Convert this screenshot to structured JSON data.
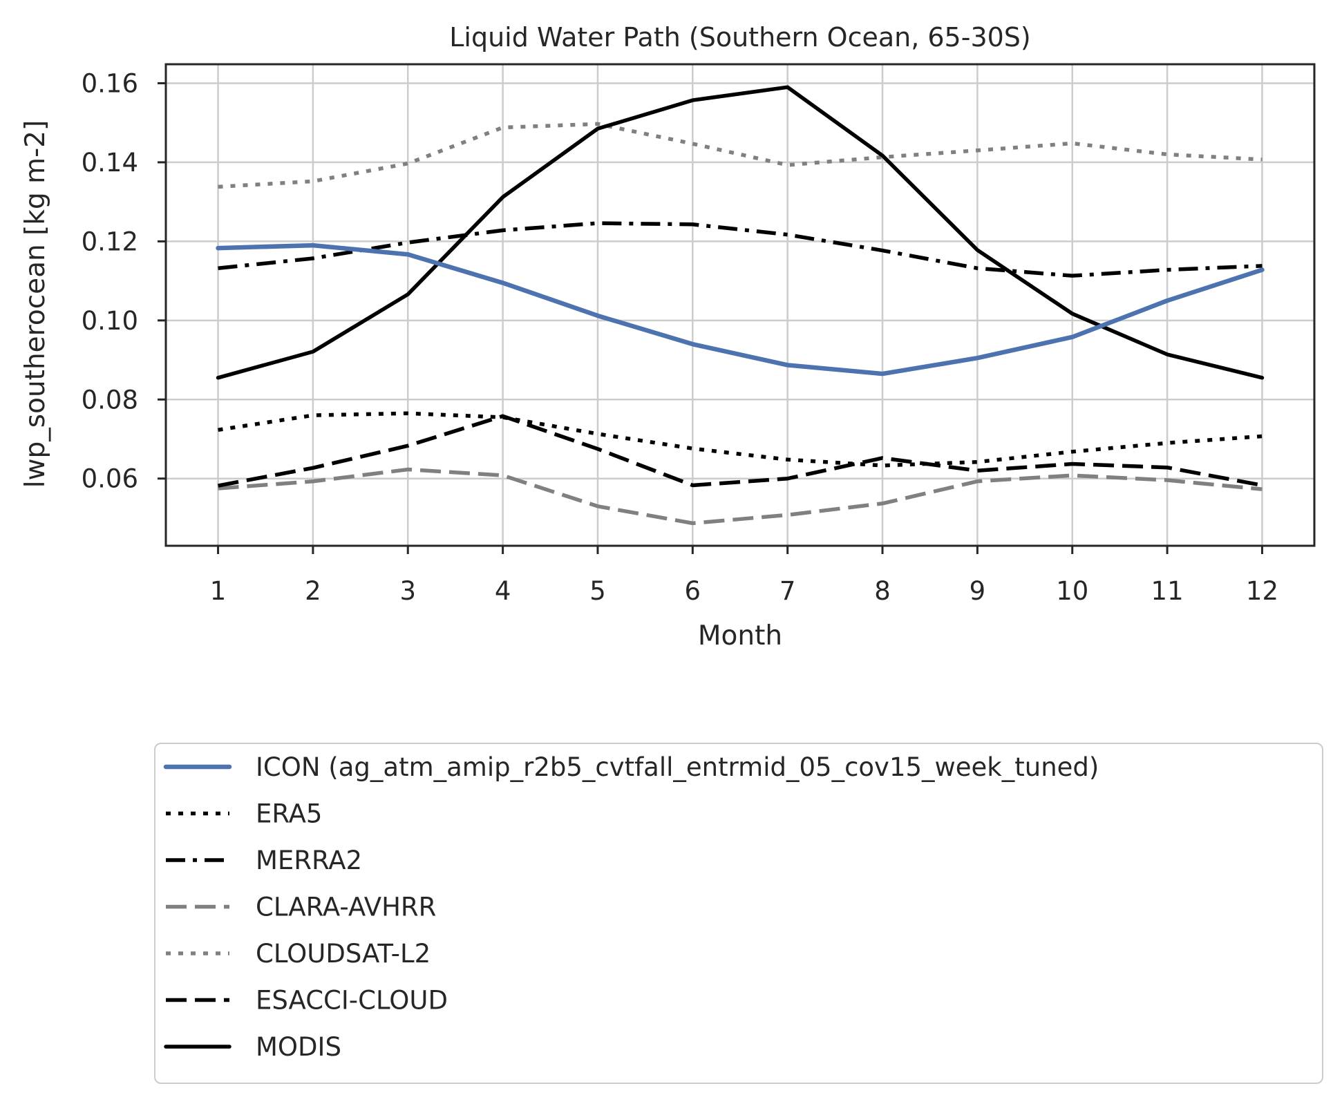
{
  "chart_data": {
    "type": "line",
    "title": "Liquid Water Path (Southern Ocean, 65-30S)",
    "xlabel": "Month",
    "ylabel": "lwp_southerocean [kg m-2]",
    "x": [
      1,
      2,
      3,
      4,
      5,
      6,
      7,
      8,
      9,
      10,
      11,
      12
    ],
    "x_tick_labels": [
      "1",
      "2",
      "3",
      "4",
      "5",
      "6",
      "7",
      "8",
      "9",
      "10",
      "11",
      "12"
    ],
    "xlim": [
      0.45,
      12.55
    ],
    "ylim": [
      0.043,
      0.1648
    ],
    "y_ticks": [
      0.06,
      0.08,
      0.1,
      0.12,
      0.14,
      0.16
    ],
    "y_tick_labels": [
      "0.06",
      "0.08",
      "0.10",
      "0.12",
      "0.14",
      "0.16"
    ],
    "grid": true,
    "legend_position": "below plot",
    "series": [
      {
        "name": "ICON (ag_atm_amip_r2b5_cvtfall_entrmid_05_cov15_week_tuned)",
        "color": "#4c72b0",
        "style": "solid",
        "values": [
          0.1183,
          0.119,
          0.1167,
          0.1095,
          0.1012,
          0.094,
          0.0887,
          0.0865,
          0.0905,
          0.0958,
          0.105,
          0.1128
        ]
      },
      {
        "name": "ERA5",
        "color": "#000000",
        "style": "dotted",
        "values": [
          0.0723,
          0.076,
          0.0765,
          0.0755,
          0.0713,
          0.0676,
          0.0648,
          0.0633,
          0.0642,
          0.0668,
          0.069,
          0.0707
        ]
      },
      {
        "name": "MERRA2",
        "color": "#000000",
        "style": "dashdot",
        "values": [
          0.1132,
          0.1157,
          0.1197,
          0.1228,
          0.1246,
          0.1243,
          0.1217,
          0.1177,
          0.1132,
          0.1113,
          0.1128,
          0.1138
        ]
      },
      {
        "name": "CLARA-AVHRR",
        "color": "#808080",
        "style": "dashed",
        "values": [
          0.0575,
          0.0593,
          0.0623,
          0.0608,
          0.053,
          0.0487,
          0.0508,
          0.0537,
          0.0593,
          0.0608,
          0.0596,
          0.0573
        ]
      },
      {
        "name": "CLOUDSAT-L2",
        "color": "#808080",
        "style": "dotted",
        "values": [
          0.1338,
          0.1352,
          0.1397,
          0.1488,
          0.1497,
          0.1447,
          0.1393,
          0.1413,
          0.143,
          0.1448,
          0.142,
          0.1407
        ]
      },
      {
        "name": "ESACCI-CLOUD",
        "color": "#000000",
        "style": "dashed",
        "values": [
          0.0582,
          0.0627,
          0.0683,
          0.0758,
          0.0675,
          0.0583,
          0.06,
          0.0652,
          0.062,
          0.0637,
          0.0628,
          0.0583
        ]
      },
      {
        "name": "MODIS",
        "color": "#000000",
        "style": "solid",
        "values": [
          0.0855,
          0.0921,
          0.1066,
          0.1312,
          0.1485,
          0.1557,
          0.159,
          0.1417,
          0.1178,
          0.1017,
          0.0914,
          0.0855
        ]
      }
    ]
  }
}
